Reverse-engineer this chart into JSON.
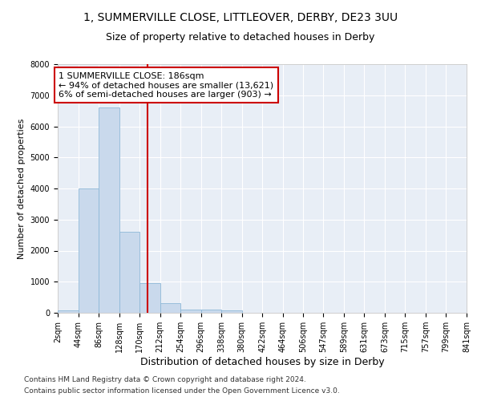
{
  "title1": "1, SUMMERVILLE CLOSE, LITTLEOVER, DERBY, DE23 3UU",
  "title2": "Size of property relative to detached houses in Derby",
  "xlabel": "Distribution of detached houses by size in Derby",
  "ylabel": "Number of detached properties",
  "bar_color": "#c9d9ec",
  "bar_edge_color": "#8eb8d8",
  "background_color": "#e8eef6",
  "grid_color": "#ffffff",
  "vline_x": 186,
  "vline_color": "#cc0000",
  "annotation_lines": [
    "1 SUMMERVILLE CLOSE: 186sqm",
    "← 94% of detached houses are smaller (13,621)",
    "6% of semi-detached houses are larger (903) →"
  ],
  "bin_edges": [
    2,
    44,
    86,
    128,
    170,
    212,
    254,
    296,
    338,
    380,
    422,
    464,
    506,
    547,
    589,
    631,
    673,
    715,
    757,
    799,
    841
  ],
  "bar_heights": [
    70,
    4000,
    6600,
    2600,
    950,
    320,
    110,
    100,
    70,
    0,
    0,
    0,
    0,
    0,
    0,
    0,
    0,
    0,
    0,
    0
  ],
  "ylim": [
    0,
    8000
  ],
  "yticks": [
    0,
    1000,
    2000,
    3000,
    4000,
    5000,
    6000,
    7000,
    8000
  ],
  "tick_labels": [
    "2sqm",
    "44sqm",
    "86sqm",
    "128sqm",
    "170sqm",
    "212sqm",
    "254sqm",
    "296sqm",
    "338sqm",
    "380sqm",
    "422sqm",
    "464sqm",
    "506sqm",
    "547sqm",
    "589sqm",
    "631sqm",
    "673sqm",
    "715sqm",
    "757sqm",
    "799sqm",
    "841sqm"
  ],
  "footnote1": "Contains HM Land Registry data © Crown copyright and database right 2024.",
  "footnote2": "Contains public sector information licensed under the Open Government Licence v3.0.",
  "title1_fontsize": 10,
  "title2_fontsize": 9,
  "xlabel_fontsize": 9,
  "ylabel_fontsize": 8,
  "tick_fontsize": 7,
  "annotation_fontsize": 8,
  "footnote_fontsize": 6.5
}
